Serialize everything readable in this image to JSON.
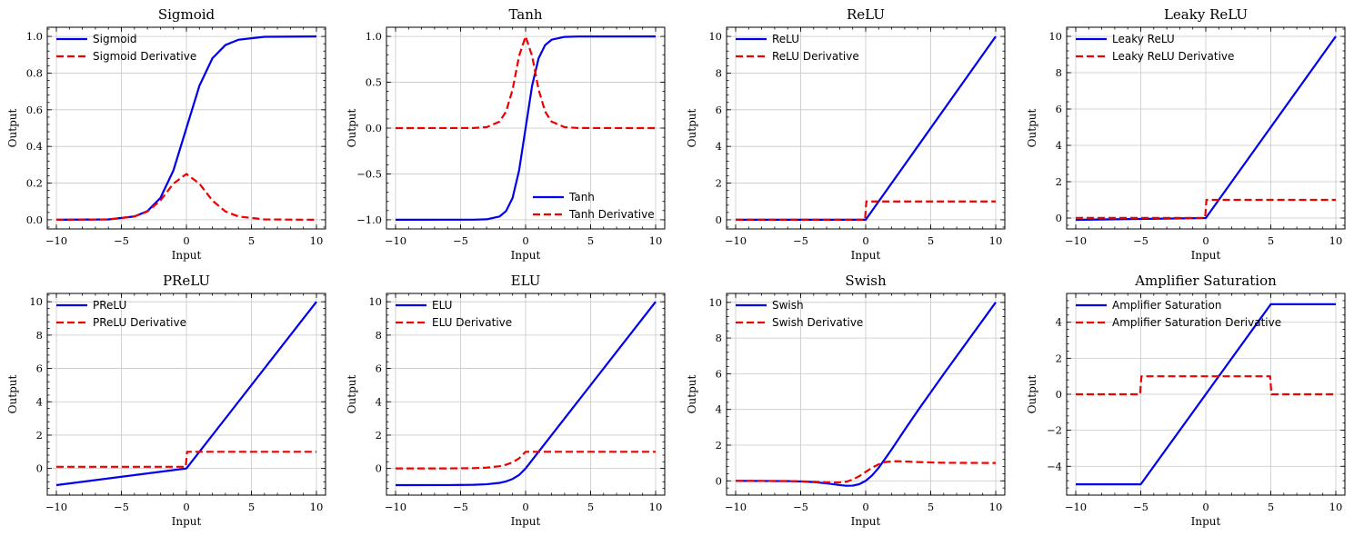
{
  "colors": {
    "function": "#0000ee",
    "derivative": "#ee0000",
    "grid": "#c8c8c8"
  },
  "chart_data": [
    {
      "type": "line",
      "title": "Sigmoid",
      "xlabel": "Input",
      "ylabel": "Output",
      "xlim": [
        -10.7,
        10.7
      ],
      "ylim": [
        -0.05,
        1.05
      ],
      "xticks": [
        -10,
        -5,
        0,
        5,
        10
      ],
      "yticks": [
        0.0,
        0.2,
        0.4,
        0.6,
        0.8,
        1.0
      ],
      "ytick_labels": [
        "0.0",
        "0.2",
        "0.4",
        "0.6",
        "0.8",
        "1.0"
      ],
      "legend": "upper-left",
      "series": [
        {
          "name": "Sigmoid",
          "style": "solid",
          "color": "#0000ee",
          "x": [
            -10,
            -6,
            -4,
            -3,
            -2,
            -1,
            0,
            1,
            2,
            3,
            4,
            6,
            10
          ],
          "y": [
            0.0,
            0.002,
            0.018,
            0.047,
            0.119,
            0.269,
            0.5,
            0.731,
            0.881,
            0.953,
            0.982,
            0.998,
            1.0
          ]
        },
        {
          "name": "Sigmoid Derivative",
          "style": "dashed",
          "color": "#ee0000",
          "x": [
            -10,
            -6,
            -4,
            -3,
            -2,
            -1,
            0,
            1,
            2,
            3,
            4,
            6,
            10
          ],
          "y": [
            0.0,
            0.002,
            0.018,
            0.045,
            0.105,
            0.197,
            0.25,
            0.197,
            0.105,
            0.045,
            0.018,
            0.002,
            0.0
          ]
        }
      ]
    },
    {
      "type": "line",
      "title": "Tanh",
      "xlabel": "Input",
      "ylabel": "Output",
      "xlim": [
        -10.7,
        10.7
      ],
      "ylim": [
        -1.1,
        1.1
      ],
      "xticks": [
        -10,
        -5,
        0,
        5,
        10
      ],
      "yticks": [
        -1.0,
        -0.5,
        0.0,
        0.5,
        1.0
      ],
      "ytick_labels": [
        "−1.0",
        "−0.5",
        "0.0",
        "0.5",
        "1.0"
      ],
      "legend": "lower-right",
      "series": [
        {
          "name": "Tanh",
          "style": "solid",
          "color": "#0000ee",
          "x": [
            -10,
            -4,
            -3,
            -2,
            -1.5,
            -1,
            -0.5,
            0,
            0.5,
            1,
            1.5,
            2,
            3,
            4,
            10
          ],
          "y": [
            -1.0,
            -0.999,
            -0.995,
            -0.964,
            -0.905,
            -0.762,
            -0.462,
            0.0,
            0.462,
            0.762,
            0.905,
            0.964,
            0.995,
            0.999,
            1.0
          ]
        },
        {
          "name": "Tanh Derivative",
          "style": "dashed",
          "color": "#ee0000",
          "x": [
            -10,
            -4,
            -3,
            -2,
            -1.5,
            -1,
            -0.5,
            0,
            0.5,
            1,
            1.5,
            2,
            3,
            4,
            10
          ],
          "y": [
            0.0,
            0.001,
            0.01,
            0.071,
            0.181,
            0.42,
            0.787,
            1.0,
            0.787,
            0.42,
            0.181,
            0.071,
            0.01,
            0.001,
            0.0
          ]
        }
      ]
    },
    {
      "type": "line",
      "title": "ReLU",
      "xlabel": "Input",
      "ylabel": "Output",
      "xlim": [
        -10.7,
        10.7
      ],
      "ylim": [
        -0.5,
        10.5
      ],
      "xticks": [
        -10,
        -5,
        0,
        5,
        10
      ],
      "yticks": [
        0,
        2,
        4,
        6,
        8,
        10
      ],
      "ytick_labels": [
        "0",
        "2",
        "4",
        "6",
        "8",
        "10"
      ],
      "legend": "upper-left",
      "series": [
        {
          "name": "ReLU",
          "style": "solid",
          "color": "#0000ee",
          "x": [
            -10,
            0,
            10
          ],
          "y": [
            0,
            0,
            10
          ]
        },
        {
          "name": "ReLU Derivative",
          "style": "dashed",
          "color": "#ee0000",
          "x": [
            -10,
            -0.05,
            0.05,
            10
          ],
          "y": [
            0,
            0,
            1,
            1
          ]
        }
      ]
    },
    {
      "type": "line",
      "title": "Leaky ReLU",
      "xlabel": "Input",
      "ylabel": "Output",
      "xlim": [
        -10.7,
        10.7
      ],
      "ylim": [
        -0.6,
        10.5
      ],
      "xticks": [
        -10,
        -5,
        0,
        5,
        10
      ],
      "yticks": [
        0,
        2,
        4,
        6,
        8,
        10
      ],
      "ytick_labels": [
        "0",
        "2",
        "4",
        "6",
        "8",
        "10"
      ],
      "legend": "upper-left",
      "series": [
        {
          "name": "Leaky ReLU",
          "style": "solid",
          "color": "#0000ee",
          "x": [
            -10,
            0,
            10
          ],
          "y": [
            -0.1,
            0,
            10
          ]
        },
        {
          "name": "Leaky ReLU Derivative",
          "style": "dashed",
          "color": "#ee0000",
          "x": [
            -10,
            -0.05,
            0.05,
            10
          ],
          "y": [
            0.01,
            0.01,
            1,
            1
          ]
        }
      ]
    },
    {
      "type": "line",
      "title": "PReLU",
      "xlabel": "Input",
      "ylabel": "Output",
      "xlim": [
        -10.7,
        10.7
      ],
      "ylim": [
        -1.6,
        10.5
      ],
      "xticks": [
        -10,
        -5,
        0,
        5,
        10
      ],
      "yticks": [
        0,
        2,
        4,
        6,
        8,
        10
      ],
      "ytick_labels": [
        "0",
        "2",
        "4",
        "6",
        "8",
        "10"
      ],
      "legend": "upper-left",
      "series": [
        {
          "name": "PReLU",
          "style": "solid",
          "color": "#0000ee",
          "x": [
            -10,
            0,
            10
          ],
          "y": [
            -1.0,
            0,
            10
          ]
        },
        {
          "name": "PReLU Derivative",
          "style": "dashed",
          "color": "#ee0000",
          "x": [
            -10,
            -0.05,
            0.05,
            10
          ],
          "y": [
            0.1,
            0.1,
            1,
            1
          ]
        }
      ]
    },
    {
      "type": "line",
      "title": "ELU",
      "xlabel": "Input",
      "ylabel": "Output",
      "xlim": [
        -10.7,
        10.7
      ],
      "ylim": [
        -1.6,
        10.5
      ],
      "xticks": [
        -10,
        -5,
        0,
        5,
        10
      ],
      "yticks": [
        0,
        2,
        4,
        6,
        8,
        10
      ],
      "ytick_labels": [
        "0",
        "2",
        "4",
        "6",
        "8",
        "10"
      ],
      "legend": "upper-left",
      "series": [
        {
          "name": "ELU",
          "style": "solid",
          "color": "#0000ee",
          "x": [
            -10,
            -6,
            -4,
            -3,
            -2,
            -1.5,
            -1,
            -0.5,
            0,
            10
          ],
          "y": [
            -1.0,
            -0.998,
            -0.982,
            -0.95,
            -0.865,
            -0.777,
            -0.632,
            -0.393,
            0,
            10
          ]
        },
        {
          "name": "ELU Derivative",
          "style": "dashed",
          "color": "#ee0000",
          "x": [
            -10,
            -6,
            -4,
            -3,
            -2,
            -1.5,
            -1,
            -0.5,
            0,
            10
          ],
          "y": [
            0.0,
            0.002,
            0.018,
            0.05,
            0.135,
            0.223,
            0.368,
            0.607,
            1.0,
            1.0
          ]
        }
      ]
    },
    {
      "type": "line",
      "title": "Swish",
      "xlabel": "Input",
      "ylabel": "Output",
      "xlim": [
        -10.7,
        10.7
      ],
      "ylim": [
        -0.8,
        10.5
      ],
      "xticks": [
        -10,
        -5,
        0,
        5,
        10
      ],
      "yticks": [
        0,
        2,
        4,
        6,
        8,
        10
      ],
      "ytick_labels": [
        "0",
        "2",
        "4",
        "6",
        "8",
        "10"
      ],
      "legend": "upper-left",
      "series": [
        {
          "name": "Swish",
          "style": "solid",
          "color": "#0000ee",
          "x": [
            -10,
            -6,
            -5,
            -4,
            -3,
            -2,
            -1.5,
            -1,
            -0.5,
            0,
            0.5,
            1,
            2,
            3,
            4,
            6,
            10
          ],
          "y": [
            -0.0005,
            -0.015,
            -0.033,
            -0.072,
            -0.142,
            -0.238,
            -0.274,
            -0.269,
            -0.189,
            0,
            0.311,
            0.731,
            1.762,
            2.858,
            3.928,
            5.985,
            10.0
          ]
        },
        {
          "name": "Swish Derivative",
          "style": "dashed",
          "color": "#ee0000",
          "x": [
            -10,
            -6,
            -5,
            -4,
            -3,
            -2,
            -1.5,
            -1,
            -0.5,
            0,
            0.5,
            1,
            1.5,
            2,
            2.4,
            3,
            4,
            6,
            10
          ],
          "y": [
            -0.0004,
            -0.012,
            -0.027,
            -0.053,
            -0.088,
            -0.091,
            -0.05,
            0.072,
            0.26,
            0.5,
            0.74,
            0.928,
            1.05,
            1.091,
            1.1,
            1.088,
            1.053,
            1.012,
            1.0
          ]
        }
      ]
    },
    {
      "type": "line",
      "title": "Amplifier Saturation",
      "xlabel": "Input",
      "ylabel": "Output",
      "xlim": [
        -10.7,
        10.7
      ],
      "ylim": [
        -5.6,
        5.6
      ],
      "xticks": [
        -10,
        -5,
        0,
        5,
        10
      ],
      "yticks": [
        -4,
        -2,
        0,
        2,
        4
      ],
      "ytick_labels": [
        "−4",
        "−2",
        "0",
        "2",
        "4"
      ],
      "legend": "upper-left",
      "series": [
        {
          "name": "Amplifier Saturation",
          "style": "solid",
          "color": "#0000ee",
          "x": [
            -10,
            -5,
            5,
            10
          ],
          "y": [
            -5,
            -5,
            5,
            5
          ]
        },
        {
          "name": "Amplifier Saturation Derivative",
          "style": "dashed",
          "color": "#ee0000",
          "x": [
            -10,
            -5.05,
            -4.95,
            4.95,
            5.05,
            10
          ],
          "y": [
            0,
            0,
            1,
            1,
            0,
            0
          ]
        }
      ]
    }
  ],
  "xtick_labels": [
    "−10",
    "−5",
    "0",
    "5",
    "10"
  ]
}
